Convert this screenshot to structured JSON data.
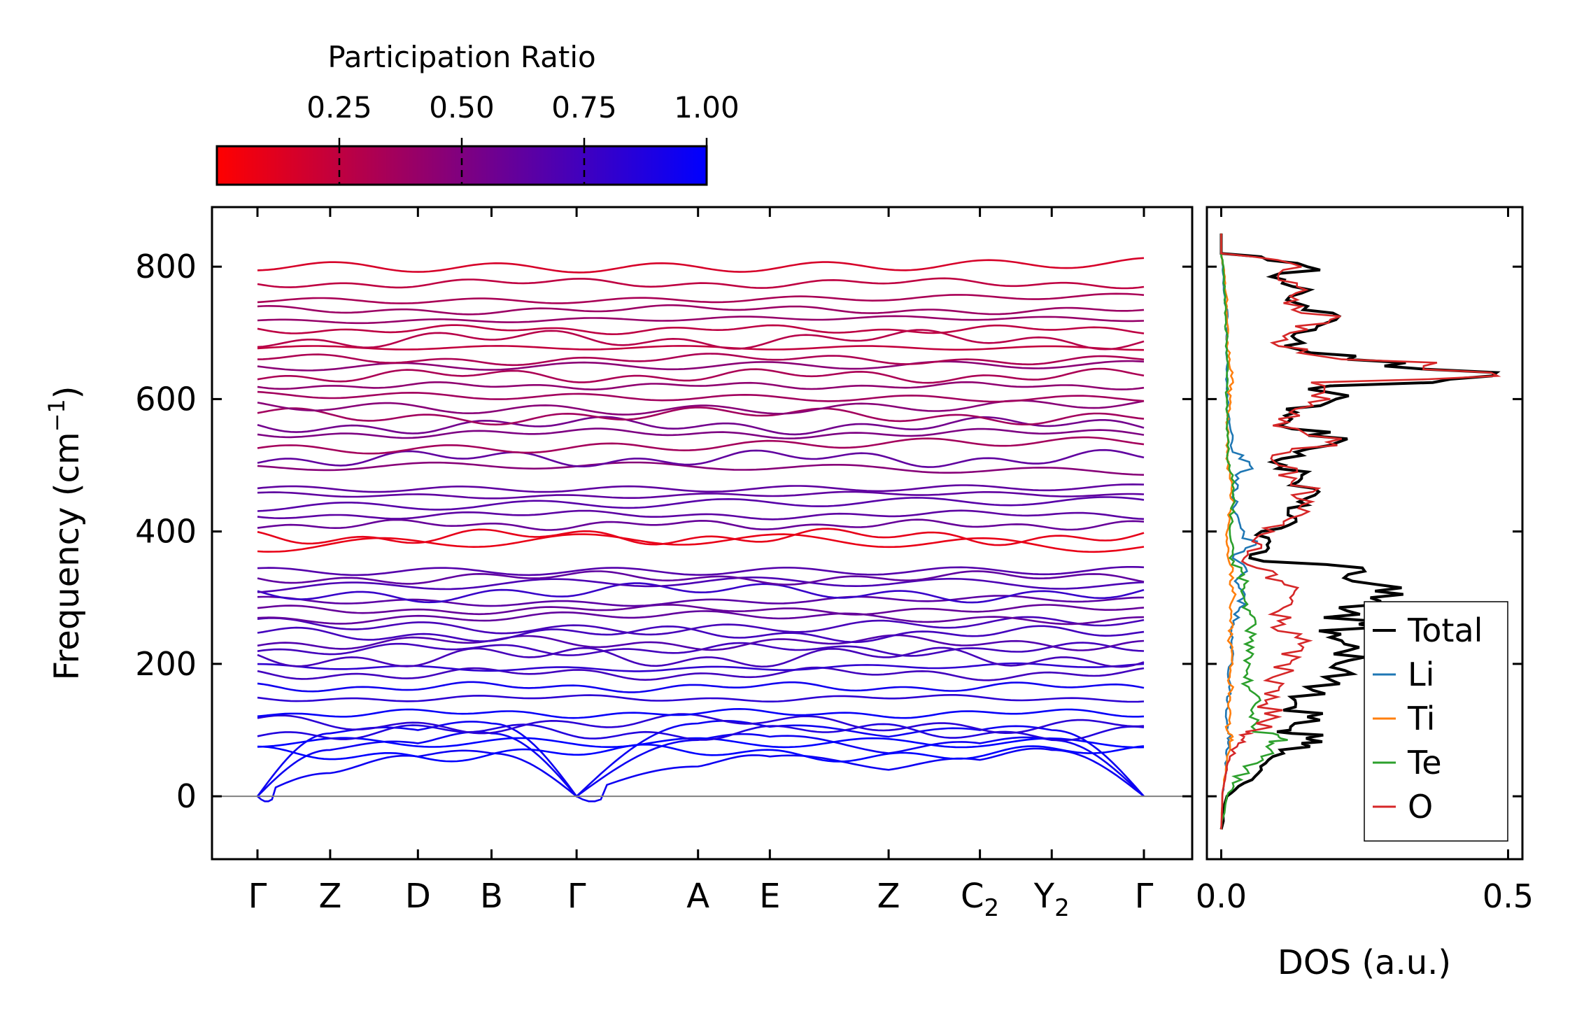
{
  "colorbar": {
    "title": "Participation Ratio",
    "ticks": [
      "0.25",
      "0.50",
      "0.75",
      "1.00"
    ],
    "tick_values": [
      0.25,
      0.5,
      0.75,
      1.0
    ],
    "range": [
      0.0,
      1.0
    ],
    "color_low": "#ff0000",
    "color_high": "#0000ff"
  },
  "band_panel": {
    "ylabel_main": "Frequency (cm",
    "ylabel_sup": "−1",
    "ylabel_close": ")",
    "yticks": [
      "0",
      "200",
      "400",
      "600",
      "800"
    ],
    "ytick_values": [
      0,
      200,
      400,
      600,
      800
    ],
    "ylim": [
      -95,
      890
    ],
    "kpoints": [
      {
        "label": "Γ",
        "sub": ""
      },
      {
        "label": "Z",
        "sub": ""
      },
      {
        "label": "D",
        "sub": ""
      },
      {
        "label": "B",
        "sub": ""
      },
      {
        "label": "Γ",
        "sub": ""
      },
      {
        "label": "A",
        "sub": ""
      },
      {
        "label": "E",
        "sub": ""
      },
      {
        "label": "Z",
        "sub": ""
      },
      {
        "label": "C",
        "sub": "2"
      },
      {
        "label": "Y",
        "sub": "2"
      },
      {
        "label": "Γ",
        "sub": ""
      }
    ]
  },
  "dos_panel": {
    "xlabel": "DOS (a.u.)",
    "xticks": [
      "0.0",
      "0.5"
    ],
    "xtick_values": [
      0.0,
      0.5
    ],
    "xlim": [
      -0.025,
      0.525
    ],
    "legend": [
      {
        "name": "Total",
        "color": "#000000"
      },
      {
        "name": "Li",
        "color": "#1f77b4"
      },
      {
        "name": "Ti",
        "color": "#ff7f0e"
      },
      {
        "name": "Te",
        "color": "#2ca02c"
      },
      {
        "name": "O",
        "color": "#d62728"
      }
    ]
  },
  "chart_data": [
    {
      "type": "line",
      "title": "",
      "xlabel": "",
      "ylabel": "Frequency (cm−1)",
      "ylim": [
        -95,
        890
      ],
      "categories": [
        "Γ",
        "Z",
        "D",
        "B",
        "Γ",
        "A",
        "E",
        "Z",
        "C2",
        "Y2",
        "Γ"
      ],
      "band_frequencies_cm-1": [
        0,
        30,
        65,
        85,
        97,
        110,
        125,
        148,
        165,
        185,
        195,
        210,
        222,
        232,
        245,
        258,
        270,
        282,
        295,
        308,
        318,
        330,
        345,
        380,
        392,
        410,
        425,
        440,
        455,
        468,
        495,
        510,
        530,
        548,
        560,
        575,
        590,
        605,
        620,
        635,
        648,
        660,
        675,
        690,
        705,
        720,
        735,
        752,
        775,
        805
      ],
      "acoustic_modes": "3 acoustic branches, 0 at Γ, rising to ~60-110 cm−1 at zone boundary, slight negative dip near Γ",
      "color_encoding": "participation ratio 0 (red) to 1 (blue)",
      "low_frequency_participation": 0.95,
      "high_frequency_participation": 0.25
    },
    {
      "type": "line",
      "title": "",
      "xlabel": "DOS (a.u.)",
      "ylabel": "",
      "xlim": [
        -0.025,
        0.525
      ],
      "ylim": [
        -95,
        890
      ],
      "y": [
        -50,
        0,
        20,
        40,
        60,
        80,
        90,
        100,
        120,
        140,
        160,
        180,
        200,
        220,
        240,
        260,
        280,
        300,
        320,
        340,
        360,
        380,
        400,
        420,
        440,
        460,
        480,
        500,
        520,
        540,
        560,
        580,
        600,
        620,
        640,
        660,
        680,
        700,
        720,
        740,
        760,
        780,
        800,
        820,
        850
      ],
      "series": [
        {
          "name": "Total",
          "values": [
            0,
            0.01,
            0.04,
            0.07,
            0.09,
            0.14,
            0.16,
            0.12,
            0.15,
            0.13,
            0.16,
            0.18,
            0.2,
            0.22,
            0.19,
            0.24,
            0.22,
            0.26,
            0.27,
            0.25,
            0.05,
            0.08,
            0.07,
            0.13,
            0.15,
            0.17,
            0.14,
            0.11,
            0.13,
            0.22,
            0.1,
            0.13,
            0.2,
            0.19,
            0.48,
            0.22,
            0.11,
            0.13,
            0.2,
            0.15,
            0.14,
            0.11,
            0.15,
            0.0,
            0.0
          ]
        },
        {
          "name": "Li",
          "values": [
            0,
            0.002,
            0.005,
            0.008,
            0.01,
            0.012,
            0.015,
            0.01,
            0.008,
            0.012,
            0.015,
            0.012,
            0.018,
            0.02,
            0.02,
            0.022,
            0.03,
            0.04,
            0.03,
            0.045,
            0.02,
            0.06,
            0.04,
            0.03,
            0.025,
            0.02,
            0.03,
            0.05,
            0.02,
            0.02,
            0.015,
            0.012,
            0.01,
            0.01,
            0.01,
            0.01,
            0.008,
            0.01,
            0.01,
            0.008,
            0.005,
            0.004,
            0.003,
            0.0,
            0.0
          ]
        },
        {
          "name": "Ti",
          "values": [
            0,
            0.002,
            0.005,
            0.008,
            0.01,
            0.015,
            0.02,
            0.01,
            0.015,
            0.012,
            0.018,
            0.015,
            0.02,
            0.018,
            0.015,
            0.02,
            0.018,
            0.022,
            0.015,
            0.02,
            0.012,
            0.01,
            0.01,
            0.015,
            0.02,
            0.018,
            0.015,
            0.012,
            0.01,
            0.012,
            0.01,
            0.012,
            0.015,
            0.015,
            0.02,
            0.015,
            0.01,
            0.012,
            0.01,
            0.01,
            0.008,
            0.006,
            0.004,
            0.0,
            0.0
          ]
        },
        {
          "name": "Te",
          "values": [
            0,
            0.01,
            0.02,
            0.045,
            0.07,
            0.09,
            0.1,
            0.06,
            0.05,
            0.06,
            0.05,
            0.04,
            0.05,
            0.045,
            0.05,
            0.06,
            0.05,
            0.04,
            0.04,
            0.035,
            0.015,
            0.02,
            0.015,
            0.018,
            0.02,
            0.02,
            0.018,
            0.015,
            0.012,
            0.012,
            0.01,
            0.01,
            0.01,
            0.01,
            0.01,
            0.01,
            0.008,
            0.01,
            0.008,
            0.008,
            0.006,
            0.005,
            0.004,
            0.0,
            0.0
          ]
        },
        {
          "name": "O",
          "values": [
            0,
            0.002,
            0.005,
            0.01,
            0.015,
            0.03,
            0.04,
            0.06,
            0.1,
            0.08,
            0.1,
            0.09,
            0.12,
            0.14,
            0.13,
            0.11,
            0.1,
            0.12,
            0.11,
            0.09,
            0.04,
            0.07,
            0.09,
            0.12,
            0.14,
            0.16,
            0.13,
            0.1,
            0.12,
            0.21,
            0.09,
            0.12,
            0.19,
            0.18,
            0.47,
            0.21,
            0.1,
            0.12,
            0.19,
            0.14,
            0.13,
            0.1,
            0.14,
            0.0,
            0.0
          ]
        }
      ]
    }
  ]
}
